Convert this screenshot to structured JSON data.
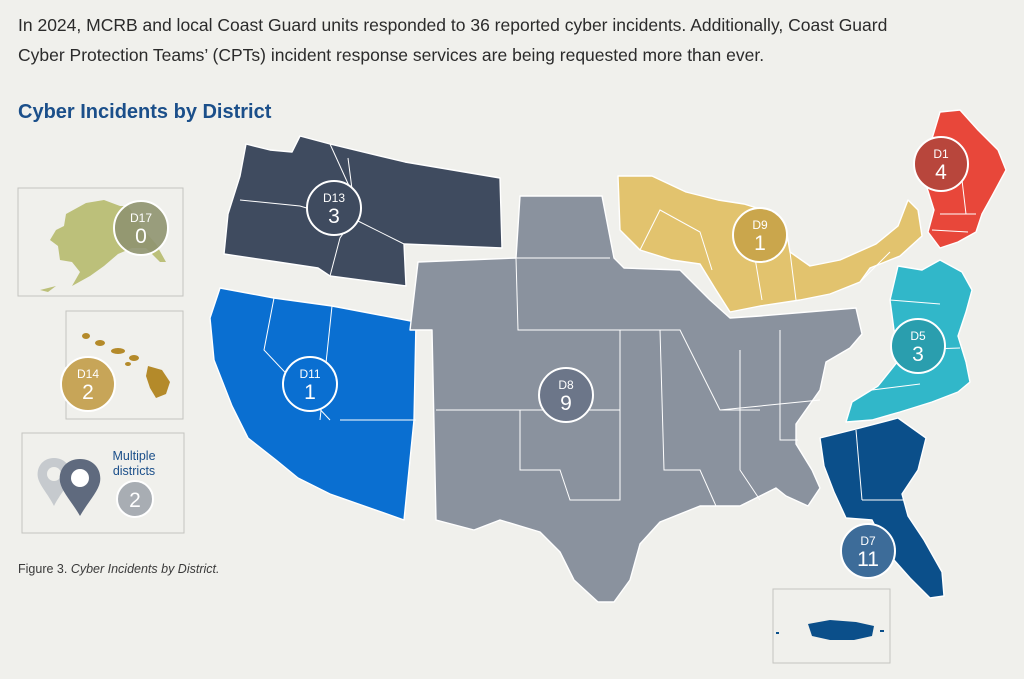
{
  "intro": {
    "line1": "In 2024, MCRB and local Coast Guard units responded to 36 reported cyber incidents. Additionally, Coast Guard",
    "line2": "Cyber Protection Teams’ (CPTs) incident response services are being requested more than ever."
  },
  "title": "Cyber Incidents by District",
  "caption": {
    "prefix": "Figure 3. ",
    "italic": "Cyber Incidents by District."
  },
  "districts": [
    {
      "code": "D1",
      "count": "4",
      "color": "#e8473a"
    },
    {
      "code": "D5",
      "count": "3",
      "color": "#31b7c9"
    },
    {
      "code": "D7",
      "count": "11",
      "color": "#0b4f8a"
    },
    {
      "code": "D8",
      "count": "9",
      "color": "#8a929e"
    },
    {
      "code": "D9",
      "count": "1",
      "color": "#e2c36e"
    },
    {
      "code": "D11",
      "count": "1",
      "color": "#0a6fd1"
    },
    {
      "code": "D13",
      "count": "3",
      "color": "#3f4b5f"
    },
    {
      "code": "D14",
      "count": "2",
      "color": "#b48a2a"
    },
    {
      "code": "D17",
      "count": "0",
      "color": "#bcc07a"
    }
  ],
  "legend": {
    "label_line1": "Multiple",
    "label_line2": "districts",
    "count": "2"
  }
}
